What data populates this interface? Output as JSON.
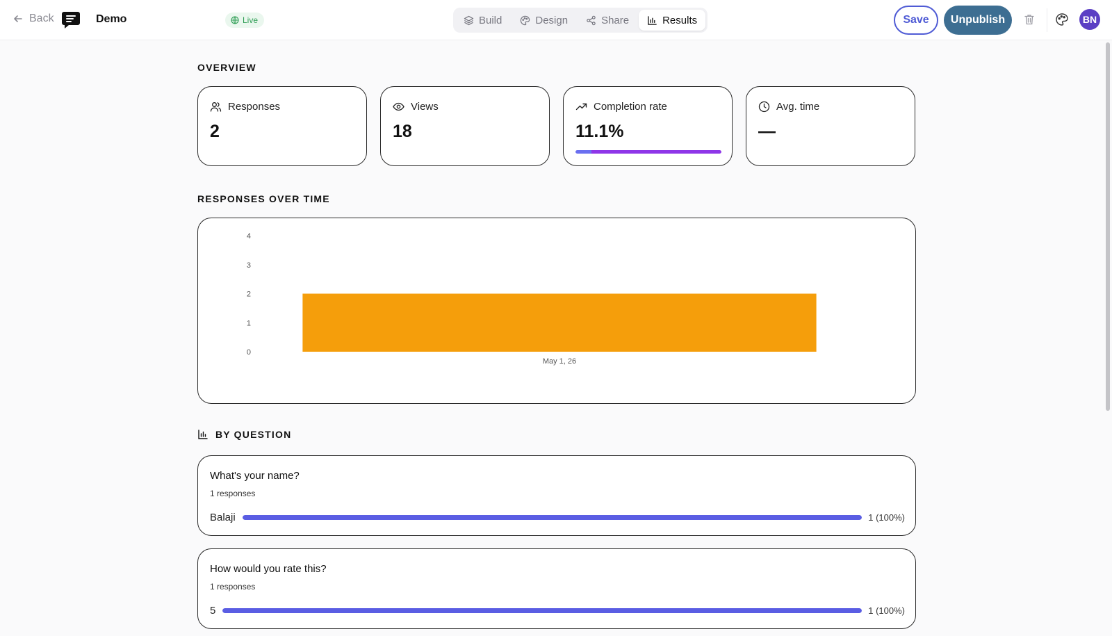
{
  "header": {
    "back_label": "Back",
    "form_title": "Demo",
    "status": "Live",
    "tabs": [
      {
        "label": "Build",
        "icon": "layers-icon"
      },
      {
        "label": "Design",
        "icon": "palette-icon"
      },
      {
        "label": "Share",
        "icon": "share-icon"
      },
      {
        "label": "Results",
        "icon": "bar-chart-icon"
      }
    ],
    "active_tab": "Results",
    "save_label": "Save",
    "unpublish_label": "Unpublish",
    "avatar_initials": "BN"
  },
  "overview": {
    "title": "OVERVIEW",
    "stats": [
      {
        "label": "Responses",
        "value": "2",
        "icon": "users-icon"
      },
      {
        "label": "Views",
        "value": "18",
        "icon": "eye-icon"
      },
      {
        "label": "Completion rate",
        "value": "11.1%",
        "icon": "trending-up-icon",
        "progress": 1.0
      },
      {
        "label": "Avg. time",
        "value": "—",
        "icon": "clock-icon"
      }
    ]
  },
  "responses_over_time": {
    "title": "RESPONSES OVER TIME",
    "chart_data": {
      "type": "bar",
      "categories": [
        "May 1, 26"
      ],
      "values": [
        2
      ],
      "title": "",
      "xlabel": "",
      "ylabel": "",
      "ylim": [
        0,
        4
      ],
      "yticks": [
        "0",
        "1",
        "2",
        "3",
        "4"
      ],
      "grid": false,
      "bar_color": "#f59e0b"
    }
  },
  "by_question": {
    "title": "BY QUESTION",
    "questions": [
      {
        "title": "What's your name?",
        "responses": "1 responses",
        "answers": [
          {
            "label": "Balaji",
            "count": "1 (100%)",
            "fraction": 1.0
          }
        ]
      },
      {
        "title": "How would you rate this?",
        "responses": "1 responses",
        "answers": [
          {
            "label": "5",
            "count": "1 (100%)",
            "fraction": 1.0
          }
        ]
      }
    ]
  },
  "colors": {
    "accent": "#4f5bd5",
    "unpublish": "#3d6e92",
    "live": "#2f9e55",
    "bar": "#f59e0b",
    "answer_bar": "#5a5de3"
  }
}
